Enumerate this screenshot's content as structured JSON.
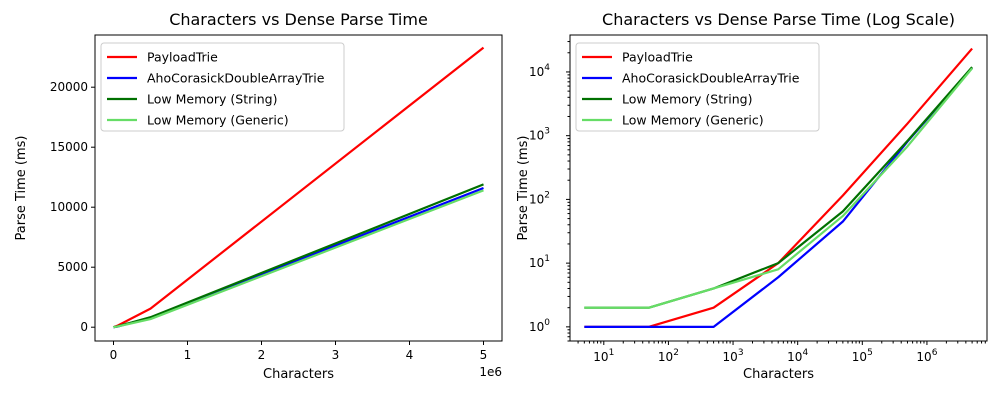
{
  "chart_data": [
    {
      "type": "line",
      "title": "Characters vs Dense Parse Time",
      "xlabel": "Characters",
      "ylabel": "Parse Time (ms)",
      "x_scale": "linear",
      "y_scale": "linear",
      "x_offset_label": "1e6",
      "xlim": [
        -250000,
        5250000
      ],
      "ylim": [
        -1150,
        24350
      ],
      "x_ticks": [
        0,
        1000000,
        2000000,
        3000000,
        4000000,
        5000000
      ],
      "x_tick_labels": [
        "0",
        "1",
        "2",
        "3",
        "4",
        "5"
      ],
      "y_ticks": [
        0,
        5000,
        10000,
        15000,
        20000
      ],
      "y_tick_labels": [
        "0",
        "5000",
        "10000",
        "15000",
        "20000"
      ],
      "legend_position": "top-left",
      "grid": false,
      "x": [
        5,
        50,
        500,
        5000,
        50000,
        500000,
        5000000
      ],
      "series": [
        {
          "name": "PayloadTrie",
          "color": "#ff0000",
          "values": [
            1,
            1,
            2,
            10,
            115,
            1550,
            23300
          ]
        },
        {
          "name": "AhoCorasickDoubleArrayTrie",
          "color": "#0000ff",
          "values": [
            1,
            1,
            1,
            6,
            45,
            810,
            11600
          ]
        },
        {
          "name": "Low Memory (String)",
          "color": "#007000",
          "values": [
            2,
            2,
            4,
            10,
            65,
            830,
            11900
          ]
        },
        {
          "name": "Low Memory (Generic)",
          "color": "#66dd66",
          "values": [
            2,
            2,
            4,
            8,
            55,
            680,
            11400
          ]
        }
      ]
    },
    {
      "type": "line",
      "title": "Characters vs Dense Parse Time (Log Scale)",
      "xlabel": "Characters",
      "ylabel": "Parse Time (ms)",
      "x_scale": "log",
      "y_scale": "log",
      "xlim": [
        3,
        8500000
      ],
      "ylim": [
        0.6,
        38000
      ],
      "x_ticks": [
        10,
        100,
        1000,
        10000,
        100000,
        1000000
      ],
      "x_tick_exponents": [
        "1",
        "2",
        "3",
        "4",
        "5",
        "6"
      ],
      "y_ticks": [
        1,
        10,
        100,
        1000,
        10000
      ],
      "y_tick_exponents": [
        "0",
        "1",
        "2",
        "3",
        "4"
      ],
      "tick_base": "10",
      "legend_position": "top-left",
      "grid": false,
      "x": [
        5,
        50,
        500,
        5000,
        50000,
        500000,
        5000000
      ],
      "series": [
        {
          "name": "PayloadTrie",
          "color": "#ff0000",
          "values": [
            1,
            1,
            2,
            10,
            115,
            1550,
            23300
          ]
        },
        {
          "name": "AhoCorasickDoubleArrayTrie",
          "color": "#0000ff",
          "values": [
            1,
            1,
            1,
            6,
            45,
            810,
            11600
          ]
        },
        {
          "name": "Low Memory (String)",
          "color": "#007000",
          "values": [
            2,
            2,
            4,
            10,
            65,
            830,
            11900
          ]
        },
        {
          "name": "Low Memory (Generic)",
          "color": "#66dd66",
          "values": [
            2,
            2,
            4,
            8,
            55,
            680,
            11400
          ]
        }
      ]
    }
  ]
}
